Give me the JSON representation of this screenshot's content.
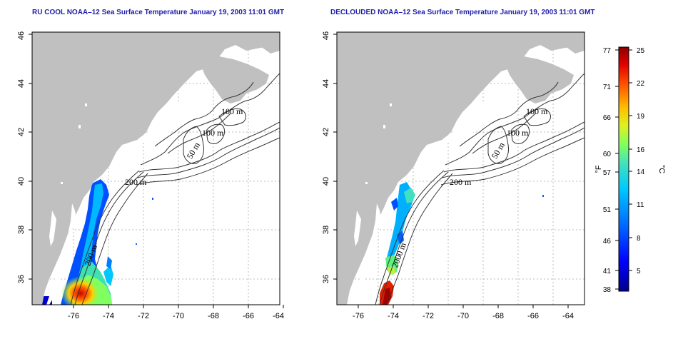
{
  "panels": [
    {
      "title": "RU COOL NOAA–12 Sea Surface Temperature January 19, 2003 11:01 GMT",
      "contour_labels": [
        "100 m",
        "100 m",
        "50 m",
        "200 m",
        "200 m"
      ]
    },
    {
      "title": "DECLOUDED NOAA–12 Sea Surface Temperature January 19, 2003 11:01 GMT",
      "contour_labels": [
        "100 m",
        "100 m",
        "50 m",
        "200 m",
        "2000 m"
      ]
    }
  ],
  "axes": {
    "x_ticks": [
      "-76",
      "-74",
      "-72",
      "-70",
      "-68",
      "-66",
      "-64"
    ],
    "y_ticks": [
      "36",
      "38",
      "40",
      "42",
      "44",
      "46"
    ]
  },
  "colorbar": {
    "f_label": "°F",
    "c_label": "°C",
    "f_ticks": [
      "77",
      "71",
      "66",
      "60",
      "57",
      "51",
      "46",
      "41",
      "38"
    ],
    "c_ticks": [
      "25",
      "22",
      "19",
      "16",
      "14",
      "11",
      "8",
      "5"
    ]
  },
  "colors": {
    "land": "#c0c0c0",
    "ocean": "#ffffff",
    "grid": "#bbbbbb",
    "title": "#1f1fa8"
  }
}
